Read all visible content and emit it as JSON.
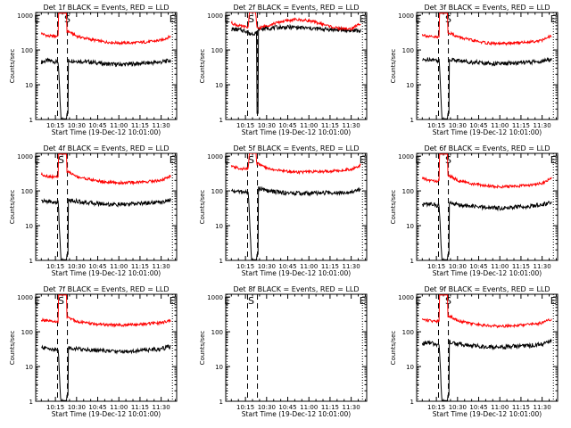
{
  "figure": {
    "xlabel": "Start Time (19-Dec-12 10:01:00)",
    "ylabel": "Counts/sec",
    "x_ticks": [
      "10:15",
      "10:30",
      "10:45",
      "11:00",
      "11:15",
      "11:30"
    ],
    "y_ticks": [
      "1",
      "10",
      "100",
      "1000"
    ],
    "marker_E": "E",
    "marker_S": "S"
  },
  "colors": {
    "events": "#000000",
    "lld": "#ff0000",
    "axis": "#000000"
  },
  "chart_data": [
    {
      "type": "line",
      "title": "Det 1f BLACK = Events, RED = LLD",
      "xlim": [
        "10:01",
        "11:41"
      ],
      "ylim": [
        1,
        1200
      ],
      "yscale": "log",
      "x_unit": "minutes_after_10:00",
      "markers": {
        "E": [
          2,
          98
        ],
        "S": [
          23.5
        ],
        "dotted": [
          2,
          98
        ],
        "dashed": [
          16.5,
          23.5
        ]
      },
      "series": [
        {
          "name": "Events",
          "color": "#000000",
          "x": [
            5,
            10,
            16,
            24,
            30,
            40,
            50,
            60,
            70,
            80,
            90,
            97
          ],
          "y": [
            45,
            50,
            45,
            50,
            48,
            45,
            40,
            38,
            40,
            42,
            45,
            50
          ]
        },
        {
          "name": "LLD",
          "color": "#ff0000",
          "x": [
            5,
            10,
            16,
            24,
            30,
            40,
            50,
            60,
            70,
            80,
            90,
            97
          ],
          "y": [
            300,
            250,
            250,
            350,
            250,
            200,
            170,
            160,
            160,
            170,
            190,
            250
          ]
        }
      ]
    },
    {
      "type": "line",
      "title": "Det 2f BLACK = Events, RED = LLD",
      "xlim": [
        "10:01",
        "11:41"
      ],
      "ylim": [
        1,
        1200
      ],
      "yscale": "log",
      "x_unit": "minutes_after_10:00",
      "markers": {
        "E": [
          2,
          98
        ],
        "S": [
          19
        ],
        "dotted": [
          2,
          98
        ],
        "dashed": [
          16.5,
          23.5
        ]
      },
      "series": [
        {
          "name": "Events",
          "color": "#000000",
          "x": [
            5,
            10,
            16,
            24,
            30,
            40,
            50,
            60,
            70,
            80,
            90,
            97
          ],
          "y": [
            400,
            380,
            350,
            400,
            420,
            450,
            450,
            420,
            400,
            380,
            360,
            360
          ]
        },
        {
          "name": "LLD",
          "color": "#ff0000",
          "x": [
            5,
            10,
            16,
            24,
            30,
            40,
            50,
            60,
            70,
            80,
            90,
            97
          ],
          "y": [
            600,
            500,
            450,
            420,
            500,
            650,
            750,
            700,
            550,
            420,
            400,
            600
          ]
        }
      ]
    },
    {
      "type": "line",
      "title": "Det 3f BLACK = Events, RED = LLD",
      "xlim": [
        "10:01",
        "11:41"
      ],
      "ylim": [
        1,
        1200
      ],
      "yscale": "log",
      "x_unit": "minutes_after_10:00",
      "markers": {
        "E": [
          2,
          98
        ],
        "S": [
          23.5
        ],
        "dotted": [
          2,
          98
        ],
        "dashed": [
          16.5,
          23.5
        ]
      },
      "series": [
        {
          "name": "Events",
          "color": "#000000",
          "x": [
            5,
            10,
            16,
            24,
            30,
            40,
            50,
            60,
            70,
            80,
            90,
            97
          ],
          "y": [
            50,
            55,
            50,
            55,
            50,
            45,
            42,
            40,
            42,
            44,
            47,
            55
          ]
        },
        {
          "name": "LLD",
          "color": "#ff0000",
          "x": [
            5,
            10,
            16,
            24,
            30,
            40,
            50,
            60,
            70,
            80,
            90,
            97
          ],
          "y": [
            280,
            240,
            230,
            320,
            240,
            190,
            160,
            150,
            160,
            170,
            190,
            260
          ]
        }
      ]
    },
    {
      "type": "line",
      "title": "Det 4f BLACK = Events, RED = LLD",
      "xlim": [
        "10:01",
        "11:41"
      ],
      "ylim": [
        1,
        1200
      ],
      "yscale": "log",
      "x_unit": "minutes_after_10:00",
      "markers": {
        "E": [
          2,
          98
        ],
        "S": [
          19
        ],
        "dotted": [
          2,
          98
        ],
        "dashed": [
          16.5,
          23.5
        ]
      },
      "series": [
        {
          "name": "Events",
          "color": "#000000",
          "x": [
            5,
            10,
            16,
            24,
            30,
            40,
            50,
            60,
            70,
            80,
            90,
            97
          ],
          "y": [
            50,
            50,
            45,
            55,
            50,
            45,
            42,
            40,
            42,
            45,
            48,
            55
          ]
        },
        {
          "name": "LLD",
          "color": "#ff0000",
          "x": [
            5,
            10,
            16,
            24,
            30,
            40,
            50,
            60,
            70,
            80,
            90,
            97
          ],
          "y": [
            300,
            260,
            250,
            360,
            260,
            210,
            180,
            170,
            175,
            185,
            200,
            270
          ]
        }
      ]
    },
    {
      "type": "line",
      "title": "Det 5f BLACK = Events, RED = LLD",
      "xlim": [
        "10:01",
        "11:41"
      ],
      "ylim": [
        1,
        1200
      ],
      "yscale": "log",
      "x_unit": "minutes_after_10:00",
      "markers": {
        "E": [
          2,
          98
        ],
        "S": [
          19
        ],
        "dotted": [
          2,
          98
        ],
        "dashed": [
          16.5,
          23.5
        ]
      },
      "series": [
        {
          "name": "Events",
          "color": "#000000",
          "x": [
            5,
            10,
            16,
            24,
            30,
            40,
            50,
            60,
            70,
            80,
            90,
            97
          ],
          "y": [
            100,
            95,
            90,
            120,
            100,
            90,
            85,
            85,
            88,
            90,
            95,
            110
          ]
        },
        {
          "name": "LLD",
          "color": "#ff0000",
          "x": [
            5,
            10,
            16,
            24,
            30,
            40,
            50,
            60,
            70,
            80,
            90,
            97
          ],
          "y": [
            500,
            450,
            420,
            600,
            450,
            380,
            350,
            350,
            360,
            380,
            420,
            550
          ]
        }
      ]
    },
    {
      "type": "line",
      "title": "Det 6f BLACK = Events, RED = LLD",
      "xlim": [
        "10:01",
        "11:41"
      ],
      "ylim": [
        1,
        1200
      ],
      "yscale": "log",
      "x_unit": "minutes_after_10:00",
      "markers": {
        "E": [
          2,
          98
        ],
        "S": [
          23.5
        ],
        "dotted": [
          2,
          98
        ],
        "dashed": [
          16.5,
          23.5
        ]
      },
      "series": [
        {
          "name": "Events",
          "color": "#000000",
          "x": [
            5,
            10,
            16,
            24,
            30,
            40,
            50,
            60,
            70,
            80,
            90,
            97
          ],
          "y": [
            40,
            42,
            38,
            45,
            40,
            36,
            33,
            32,
            34,
            36,
            40,
            48
          ]
        },
        {
          "name": "LLD",
          "color": "#ff0000",
          "x": [
            5,
            10,
            16,
            24,
            30,
            40,
            50,
            60,
            70,
            80,
            90,
            97
          ],
          "y": [
            230,
            200,
            190,
            280,
            200,
            160,
            140,
            130,
            135,
            145,
            165,
            230
          ]
        }
      ]
    },
    {
      "type": "line",
      "title": "Det 7f BLACK = Events, RED = LLD",
      "xlim": [
        "10:01",
        "11:41"
      ],
      "ylim": [
        1,
        1200
      ],
      "yscale": "log",
      "x_unit": "minutes_after_10:00",
      "markers": {
        "E": [
          2,
          98
        ],
        "S": [
          19
        ],
        "dotted": [
          2,
          98
        ],
        "dashed": [
          16.5,
          23.5
        ]
      },
      "series": [
        {
          "name": "Events",
          "color": "#000000",
          "x": [
            5,
            10,
            16,
            24,
            30,
            40,
            50,
            60,
            70,
            80,
            90,
            97
          ],
          "y": [
            35,
            33,
            30,
            35,
            32,
            30,
            28,
            27,
            28,
            30,
            32,
            38
          ]
        },
        {
          "name": "LLD",
          "color": "#ff0000",
          "x": [
            5,
            10,
            16,
            24,
            30,
            40,
            50,
            60,
            70,
            80,
            90,
            97
          ],
          "y": [
            220,
            200,
            190,
            260,
            200,
            170,
            160,
            155,
            160,
            170,
            180,
            210
          ]
        }
      ]
    },
    {
      "type": "line",
      "title": "Det 8f BLACK = Events, RED = LLD",
      "xlim": [
        "10:01",
        "11:41"
      ],
      "ylim": [
        1,
        1200
      ],
      "yscale": "log",
      "x_unit": "minutes_after_10:00",
      "markers": {
        "E": [
          2,
          98
        ],
        "S": [
          19
        ],
        "dotted": [
          2,
          98
        ],
        "dashed": [
          16.5,
          23.5
        ]
      },
      "series": []
    },
    {
      "type": "line",
      "title": "Det 9f BLACK = Events, RED = LLD",
      "xlim": [
        "10:01",
        "11:41"
      ],
      "ylim": [
        1,
        1200
      ],
      "yscale": "log",
      "x_unit": "minutes_after_10:00",
      "markers": {
        "E": [
          2,
          98
        ],
        "S": [
          23.5
        ],
        "dotted": [
          2,
          98
        ],
        "dashed": [
          16.5,
          23.5
        ]
      },
      "series": [
        {
          "name": "Events",
          "color": "#000000",
          "x": [
            5,
            10,
            16,
            24,
            30,
            40,
            50,
            60,
            70,
            80,
            90,
            97
          ],
          "y": [
            45,
            48,
            42,
            50,
            45,
            40,
            37,
            36,
            38,
            40,
            44,
            52
          ]
        },
        {
          "name": "LLD",
          "color": "#ff0000",
          "x": [
            5,
            10,
            16,
            24,
            30,
            40,
            50,
            60,
            70,
            80,
            90,
            97
          ],
          "y": [
            230,
            210,
            200,
            290,
            210,
            170,
            150,
            145,
            150,
            160,
            180,
            230
          ]
        }
      ]
    }
  ]
}
